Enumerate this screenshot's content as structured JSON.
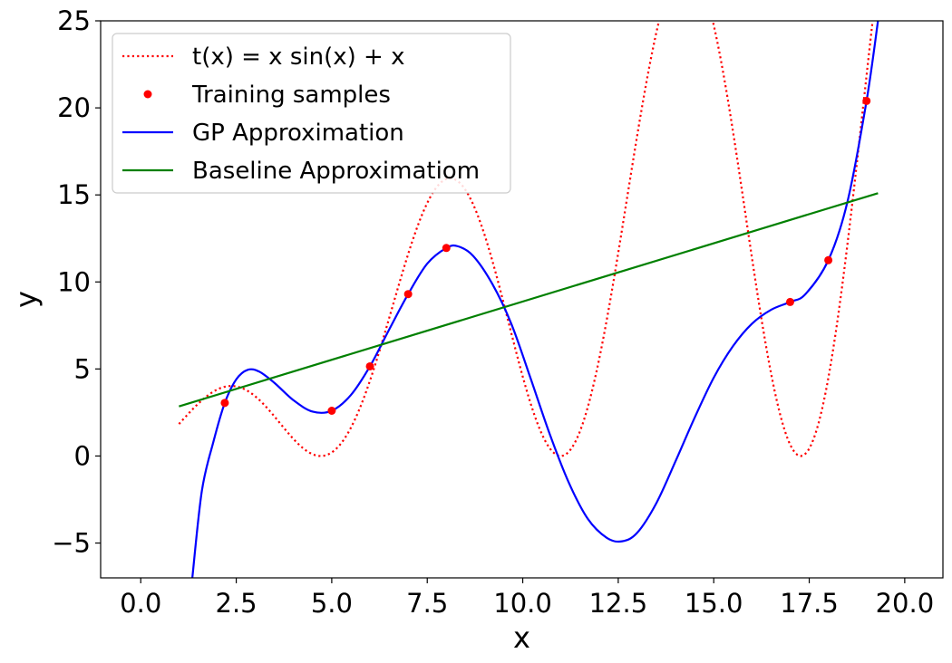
{
  "chart_data": {
    "type": "line",
    "xlabel": "x",
    "ylabel": "y",
    "xlim": [
      -1.05,
      21.0
    ],
    "ylim": [
      -7,
      25
    ],
    "xticks": [
      0.0,
      2.5,
      5.0,
      7.5,
      10.0,
      12.5,
      15.0,
      17.5,
      20.0
    ],
    "xtick_labels": [
      "0.0",
      "2.5",
      "5.0",
      "7.5",
      "10.0",
      "12.5",
      "15.0",
      "17.5",
      "20.0"
    ],
    "yticks": [
      -5,
      0,
      5,
      10,
      15,
      20,
      25
    ],
    "ytick_labels": [
      "−5",
      "0",
      "5",
      "10",
      "15",
      "20",
      "25"
    ],
    "grid": false,
    "legend_position": "upper-left",
    "colors": {
      "target": "#ff0000",
      "samples": "#ff0000",
      "gp": "#0000ff",
      "baseline": "#008000"
    },
    "legend": [
      {
        "key": "target",
        "label": "t(x) = x sin(x) + x",
        "style": "dotted-line",
        "color": "#ff0000"
      },
      {
        "key": "samples",
        "label": "Training samples",
        "style": "marker",
        "color": "#ff0000"
      },
      {
        "key": "gp",
        "label": "GP Approximation",
        "style": "line",
        "color": "#0000ff"
      },
      {
        "key": "baseline",
        "label": "Baseline Approximatiom",
        "style": "line",
        "color": "#008000"
      }
    ],
    "target_function": {
      "expression": "x*sin(x)+x",
      "x_range": [
        1.0,
        19.3
      ]
    },
    "samples": [
      {
        "x": 2.2,
        "y": 3.05
      },
      {
        "x": 5.0,
        "y": 2.6
      },
      {
        "x": 6.0,
        "y": 5.15
      },
      {
        "x": 7.0,
        "y": 9.3
      },
      {
        "x": 8.0,
        "y": 11.95
      },
      {
        "x": 17.0,
        "y": 8.85
      },
      {
        "x": 18.0,
        "y": 11.25
      },
      {
        "x": 19.0,
        "y": 20.4
      }
    ],
    "gp_points": [
      {
        "x": 1.35,
        "y": -7.0
      },
      {
        "x": 1.6,
        "y": -2.0
      },
      {
        "x": 1.9,
        "y": 0.8
      },
      {
        "x": 2.2,
        "y": 3.05
      },
      {
        "x": 2.5,
        "y": 4.4
      },
      {
        "x": 2.8,
        "y": 4.95
      },
      {
        "x": 3.1,
        "y": 4.85
      },
      {
        "x": 3.5,
        "y": 4.2
      },
      {
        "x": 4.0,
        "y": 3.2
      },
      {
        "x": 4.5,
        "y": 2.55
      },
      {
        "x": 5.0,
        "y": 2.6
      },
      {
        "x": 5.5,
        "y": 3.5
      },
      {
        "x": 6.0,
        "y": 5.15
      },
      {
        "x": 6.5,
        "y": 7.25
      },
      {
        "x": 7.0,
        "y": 9.3
      },
      {
        "x": 7.5,
        "y": 11.05
      },
      {
        "x": 8.0,
        "y": 11.95
      },
      {
        "x": 8.3,
        "y": 12.05
      },
      {
        "x": 8.7,
        "y": 11.5
      },
      {
        "x": 9.2,
        "y": 9.9
      },
      {
        "x": 9.7,
        "y": 7.6
      },
      {
        "x": 10.2,
        "y": 4.5
      },
      {
        "x": 10.7,
        "y": 1.3
      },
      {
        "x": 11.2,
        "y": -1.5
      },
      {
        "x": 11.7,
        "y": -3.6
      },
      {
        "x": 12.2,
        "y": -4.7
      },
      {
        "x": 12.6,
        "y": -4.9
      },
      {
        "x": 13.0,
        "y": -4.4
      },
      {
        "x": 13.5,
        "y": -2.7
      },
      {
        "x": 14.0,
        "y": -0.3
      },
      {
        "x": 14.5,
        "y": 2.2
      },
      {
        "x": 15.0,
        "y": 4.5
      },
      {
        "x": 15.5,
        "y": 6.3
      },
      {
        "x": 16.0,
        "y": 7.6
      },
      {
        "x": 16.5,
        "y": 8.4
      },
      {
        "x": 17.0,
        "y": 8.85
      },
      {
        "x": 17.4,
        "y": 9.3
      },
      {
        "x": 18.0,
        "y": 11.25
      },
      {
        "x": 18.5,
        "y": 14.6
      },
      {
        "x": 19.0,
        "y": 20.4
      },
      {
        "x": 19.3,
        "y": 25.0
      }
    ],
    "baseline_line": [
      {
        "x": 1.0,
        "y": 2.85
      },
      {
        "x": 19.3,
        "y": 15.1
      }
    ]
  }
}
